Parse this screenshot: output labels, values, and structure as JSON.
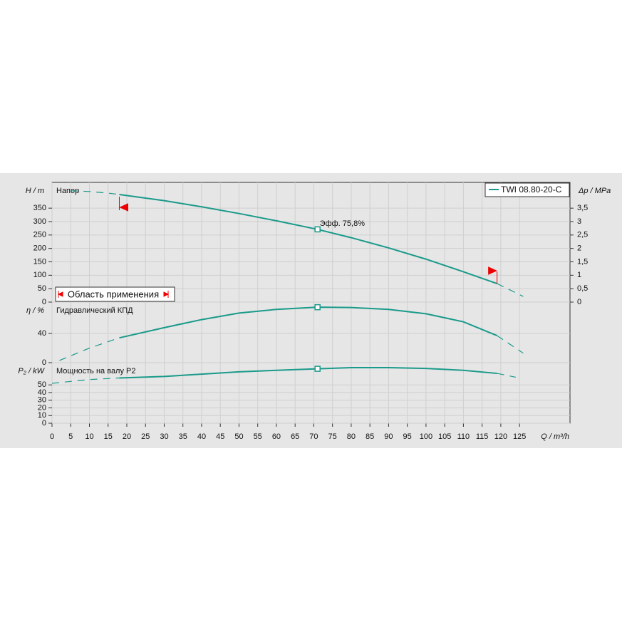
{
  "chart_data": {
    "type": "line",
    "color": "#1a9a8a",
    "grid": true,
    "legend": "TWI 08.80-20-C",
    "legend_position": "upper right",
    "xlabel": "Q / m³/h",
    "xlim": [
      0,
      138.5
    ],
    "xticks": [
      0,
      5,
      10,
      15,
      20,
      25,
      30,
      35,
      40,
      45,
      50,
      55,
      60,
      65,
      70,
      75,
      80,
      85,
      90,
      95,
      100,
      105,
      110,
      115,
      120,
      125
    ],
    "range": [
      18,
      119
    ],
    "range_label": "Область применения",
    "operating_point": {
      "x": 71,
      "label": "Эфф.  75,8%"
    },
    "panels": [
      {
        "label": "Напор",
        "ylabel": "H / m",
        "ylim": [
          0,
          446
        ],
        "yticks": [
          0,
          50,
          100,
          150,
          200,
          250,
          300,
          350
        ],
        "y2label": "Δp / MPa",
        "y2lim": [
          0,
          4.46
        ],
        "y2ticks": [
          0,
          {
            "value": 0.5,
            "label": "0,5"
          },
          1,
          {
            "value": 1.5,
            "label": "1,5"
          },
          2,
          {
            "value": 2.5,
            "label": "2,5"
          },
          3,
          {
            "value": 3.5,
            "label": "3,5"
          }
        ],
        "x": [
          5,
          10,
          15,
          18,
          30,
          40,
          50,
          60,
          71,
          80,
          90,
          100,
          110,
          119,
          126
        ],
        "values": [
          415,
          412,
          406,
          401,
          378,
          355,
          330,
          303,
          271,
          240,
          202,
          160,
          113,
          69,
          21
        ]
      },
      {
        "label": "Гидравлический КПД",
        "ylabel": "η / %",
        "ylim": [
          0,
          83
        ],
        "yticks": [
          0,
          40
        ],
        "x": [
          2,
          10,
          18,
          30,
          40,
          50,
          60,
          71,
          80,
          90,
          100,
          110,
          119,
          126
        ],
        "values": [
          3,
          20,
          34,
          48,
          59,
          68,
          73,
          76,
          75.5,
          73,
          67,
          56,
          37,
          13
        ]
      },
      {
        "label": "Мощность на валу P2",
        "ylabel": "P₂ / kW",
        "ylim": [
          0,
          79
        ],
        "yticks": [
          0,
          10,
          20,
          30,
          40,
          50
        ],
        "x": [
          0,
          10,
          18,
          30,
          40,
          50,
          60,
          71,
          80,
          90,
          100,
          110,
          119,
          124
        ],
        "values": [
          52,
          57,
          59,
          61,
          64,
          67,
          69,
          71,
          72.5,
          72.5,
          71.5,
          69,
          65,
          60
        ]
      }
    ]
  }
}
